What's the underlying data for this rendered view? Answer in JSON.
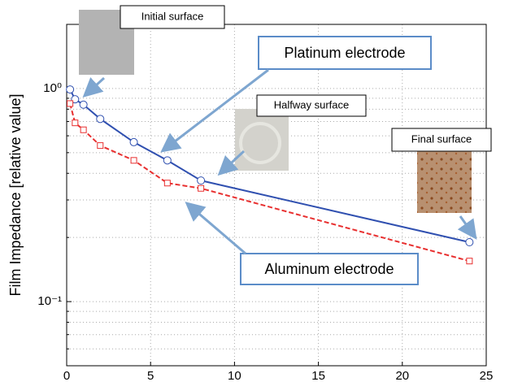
{
  "chart_data": {
    "type": "line",
    "y_label": "Film Impedance [relative value]",
    "log_y": true,
    "grid": true,
    "xlim": [
      0,
      25
    ],
    "xticks": [
      0,
      5,
      10,
      15,
      20,
      25
    ],
    "ylim": [
      0.05,
      2
    ],
    "yticks": [
      {
        "value": 0.1,
        "label": "10⁻¹"
      },
      {
        "value": 1,
        "label": "10⁰"
      }
    ],
    "y_minor_ticks": [
      0.06,
      0.07,
      0.08,
      0.09,
      0.2,
      0.3,
      0.4,
      0.5,
      0.6,
      0.7,
      0.8,
      0.9,
      2
    ],
    "series": [
      {
        "name": "Platinum electrode",
        "color": "#3050b0",
        "marker": "circle",
        "dashed": false,
        "x": [
          0.2,
          0.5,
          1,
          2,
          4,
          6,
          8,
          24
        ],
        "values": [
          0.99,
          0.89,
          0.84,
          0.72,
          0.56,
          0.46,
          0.37,
          0.19
        ]
      },
      {
        "name": "Aluminum electrode",
        "color": "#e83030",
        "marker": "square",
        "dashed": true,
        "x": [
          0.2,
          0.5,
          1,
          2,
          4,
          6,
          8,
          24
        ],
        "values": [
          0.85,
          0.69,
          0.64,
          0.54,
          0.46,
          0.36,
          0.34,
          0.155
        ]
      }
    ],
    "annotations": [
      "Initial surface",
      "Halfway surface",
      "Final surface"
    ]
  }
}
